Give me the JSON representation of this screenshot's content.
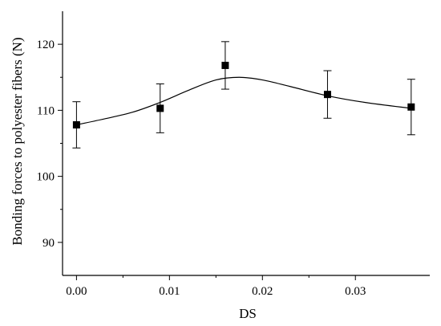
{
  "chart_data": {
    "type": "scatter",
    "title": "",
    "xlabel": "DS",
    "ylabel": "Bonding forces to polyester fibers (N)",
    "xlim": [
      -0.0015,
      0.038
    ],
    "ylim": [
      85,
      125
    ],
    "xticks": [
      "0.00",
      "0.01",
      "0.02",
      "0.03"
    ],
    "xtick_values": [
      0.0,
      0.01,
      0.02,
      0.03
    ],
    "yticks": [
      "90",
      "100",
      "110",
      "120"
    ],
    "ytick_values": [
      90,
      100,
      110,
      120
    ],
    "grid": false,
    "legend": "none",
    "marker": "square",
    "color": "#000000",
    "series": [
      {
        "x": [
          0.0,
          0.009,
          0.016,
          0.027,
          0.036
        ],
        "y": [
          107.8,
          110.3,
          116.8,
          112.4,
          110.5
        ],
        "err": [
          3.5,
          3.7,
          3.6,
          3.6,
          4.2
        ]
      }
    ],
    "fit_curve": {
      "x": [
        0.0,
        0.003,
        0.006,
        0.009,
        0.012,
        0.015,
        0.0175,
        0.02,
        0.023,
        0.027,
        0.031,
        0.036
      ],
      "y": [
        107.8,
        108.7,
        109.7,
        111.2,
        113.0,
        114.6,
        115.0,
        114.6,
        113.6,
        112.2,
        111.2,
        110.3
      ]
    }
  }
}
